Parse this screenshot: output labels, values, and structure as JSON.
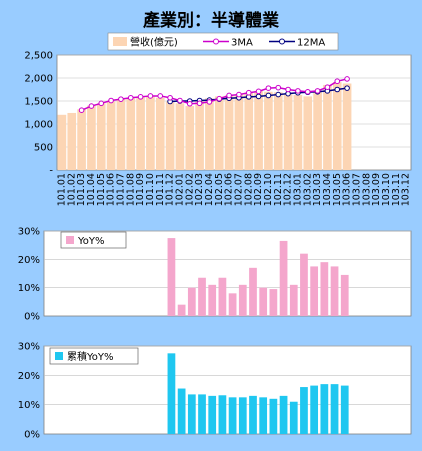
{
  "title": "產業別：半導體業",
  "colors": {
    "background": "#99ccff",
    "revenue_bar": "#fcd5b4",
    "ma3": "#cc00cc",
    "ma12": "#000080",
    "yoy_bar": "#f4a6cc",
    "cum_yoy_bar": "#1fc7f0"
  },
  "chart_data": [
    {
      "type": "bar",
      "subtype": "bar+line",
      "categories": [
        "101.01",
        "101.02",
        "101.03",
        "101.04",
        "101.05",
        "101.06",
        "101.07",
        "101.08",
        "101.09",
        "101.10",
        "101.11",
        "101.12",
        "102.01",
        "102.02",
        "102.03",
        "102.04",
        "102.05",
        "102.06",
        "102.07",
        "102.08",
        "102.09",
        "102.10",
        "102.11",
        "102.12",
        "103.01",
        "103.02",
        "103.03",
        "103.04",
        "103.05",
        "103.06",
        "103.07",
        "103.08",
        "103.09",
        "103.10",
        "103.11",
        "103.12"
      ],
      "yticks": [
        "-",
        "500",
        "1,000",
        "1,500",
        "2,000",
        "2,500"
      ],
      "ylim": [
        0,
        2500
      ],
      "grid": true,
      "legend": "top",
      "series": [
        {
          "name": "營收(億元)",
          "kind": "bar",
          "values": [
            1200,
            1240,
            1320,
            1400,
            1450,
            1490,
            1540,
            1560,
            1580,
            1610,
            1570,
            1490,
            1450,
            1390,
            1500,
            1560,
            1600,
            1620,
            1650,
            1680,
            1720,
            1700,
            1690,
            1650,
            1630,
            1600,
            1700,
            1850,
            1910,
            1880,
            null,
            null,
            null,
            null,
            null,
            null
          ]
        },
        {
          "name": "3MA",
          "kind": "line",
          "values": [
            null,
            null,
            1300,
            1390,
            1450,
            1510,
            1540,
            1570,
            1590,
            1610,
            1610,
            1570,
            1510,
            1440,
            1450,
            1480,
            1550,
            1620,
            1640,
            1680,
            1710,
            1780,
            1790,
            1750,
            1720,
            1700,
            1720,
            1800,
            1930,
            1980,
            null,
            null,
            null,
            null,
            null,
            null
          ]
        },
        {
          "name": "12MA",
          "kind": "line",
          "values": [
            null,
            null,
            null,
            null,
            null,
            null,
            null,
            null,
            null,
            null,
            null,
            1490,
            1500,
            1500,
            1510,
            1520,
            1540,
            1560,
            1570,
            1590,
            1600,
            1620,
            1640,
            1660,
            1680,
            1690,
            1700,
            1720,
            1750,
            1780,
            null,
            null,
            null,
            null,
            null,
            null
          ]
        }
      ]
    },
    {
      "type": "bar",
      "series": [
        {
          "name": "YoY%",
          "values": [
            null,
            null,
            null,
            null,
            null,
            null,
            null,
            null,
            null,
            null,
            null,
            null,
            27.5,
            4,
            10,
            13.5,
            11,
            13.5,
            8,
            11,
            17,
            10,
            9.5,
            26.5,
            11,
            22,
            17.5,
            19,
            17.5,
            14.5,
            null,
            null,
            null,
            null,
            null,
            null
          ]
        }
      ],
      "yticks": [
        "0%",
        "10%",
        "20%",
        "30%"
      ],
      "ylim": [
        0,
        30
      ],
      "grid": true,
      "legend": "top-left"
    },
    {
      "type": "bar",
      "series": [
        {
          "name": "累積YoY%",
          "values": [
            null,
            null,
            null,
            null,
            null,
            null,
            null,
            null,
            null,
            null,
            null,
            null,
            27.5,
            15.5,
            13.5,
            13.5,
            13,
            13.2,
            12.5,
            12.5,
            13,
            12.5,
            12,
            13,
            11,
            16,
            16.5,
            17,
            17,
            16.5,
            null,
            null,
            null,
            null,
            null,
            null
          ]
        }
      ],
      "yticks": [
        "0%",
        "10%",
        "20%",
        "30%"
      ],
      "ylim": [
        0,
        30
      ],
      "grid": true,
      "legend": "top-left"
    }
  ]
}
